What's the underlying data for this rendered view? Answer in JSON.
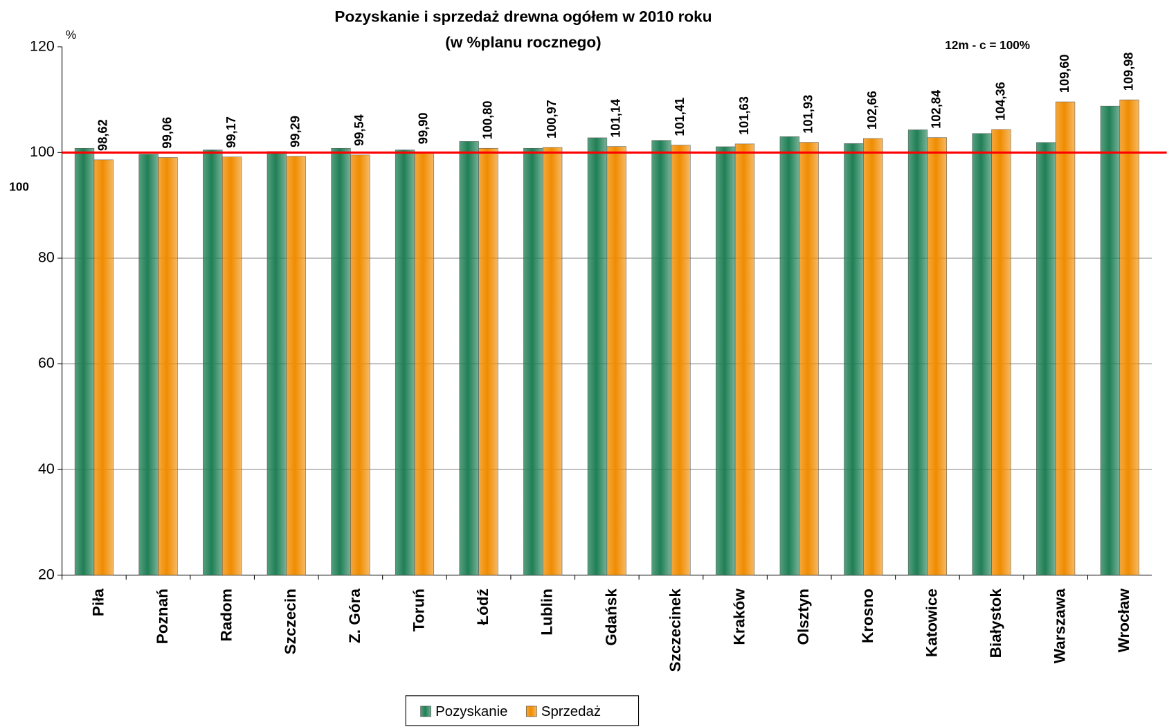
{
  "chart_data": {
    "type": "bar",
    "title": "Pozyskanie i sprzedaż drewna ogółem w 2010 roku",
    "subtitle": "(w %planu rocznego)",
    "y_unit": "%",
    "annotation": "12m - c = 100%",
    "reference_line": {
      "value": 100,
      "label": "100",
      "color": "#ff0000"
    },
    "categories": [
      "Piła",
      "Poznań",
      "Radom",
      "Szczecin",
      "Z. Góra",
      "Toruń",
      "Łódź",
      "Lublin",
      "Gdańsk",
      "Szczecinek",
      "Kraków",
      "Olsztyn",
      "Krosno",
      "Katowice",
      "Białystok",
      "Warszawa",
      "Wrocław"
    ],
    "series": [
      {
        "name": "Pozyskanie",
        "color": "#1f7f55",
        "values": [
          100.8,
          99.7,
          100.5,
          100.2,
          100.8,
          100.5,
          102.1,
          100.8,
          102.8,
          102.3,
          101.1,
          103.0,
          101.7,
          104.3,
          103.6,
          101.9,
          108.8
        ]
      },
      {
        "name": "Sprzedaż",
        "color": "#f08c00",
        "values": [
          98.62,
          99.06,
          99.17,
          99.29,
          99.54,
          99.9,
          100.8,
          100.97,
          101.14,
          101.41,
          101.63,
          101.93,
          102.66,
          102.84,
          104.36,
          109.6,
          109.98
        ],
        "value_labels": [
          "98,62",
          "99,06",
          "99,17",
          "99,29",
          "99,54",
          "99,90",
          "100,80",
          "100,97",
          "101,14",
          "101,41",
          "101,63",
          "101,93",
          "102,66",
          "102,84",
          "104,36",
          "109,60",
          "109,98"
        ]
      }
    ],
    "ylim": [
      20,
      120
    ],
    "yticks": [
      20,
      40,
      60,
      80,
      100,
      120
    ],
    "grid": true,
    "legend": "bottom"
  }
}
